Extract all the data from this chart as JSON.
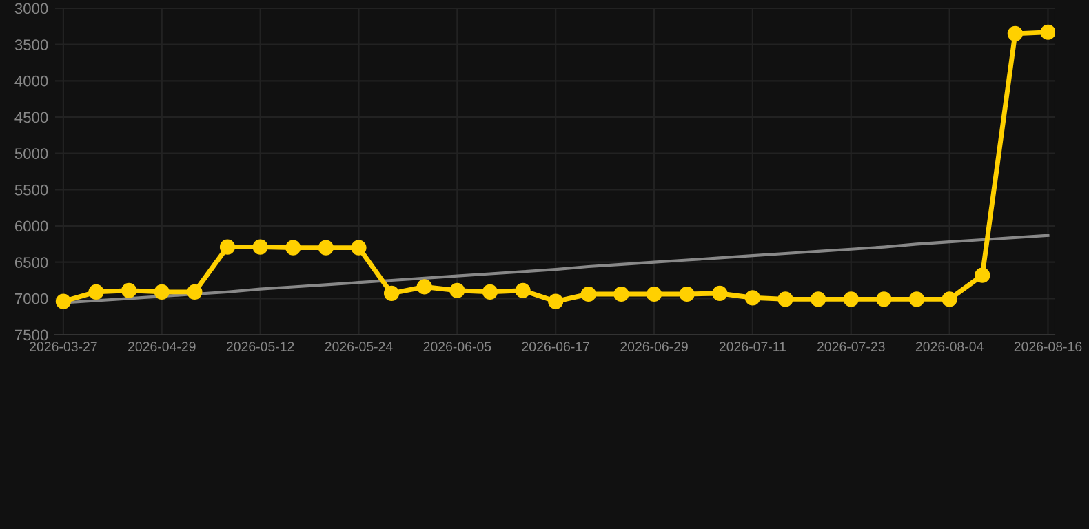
{
  "chart_data": {
    "type": "line",
    "categories": [
      "2026-03-27",
      null,
      null,
      "2026-04-29",
      null,
      null,
      "2026-05-12",
      null,
      null,
      "2026-05-24",
      null,
      null,
      "2026-06-05",
      null,
      null,
      "2026-06-17",
      null,
      null,
      "2026-06-29",
      null,
      null,
      "2026-07-11",
      null,
      null,
      "2026-07-23",
      null,
      null,
      "2026-08-04",
      null,
      null,
      "2026-08-16"
    ],
    "series": [
      {
        "color": "#ffd000",
        "marker": "circle",
        "values": [
          7040,
          6910,
          6890,
          6910,
          6910,
          6290,
          6290,
          6300,
          6300,
          6300,
          6930,
          6840,
          6890,
          6910,
          6890,
          7040,
          6940,
          6940,
          6940,
          6940,
          6930,
          6990,
          7010,
          7010,
          7010,
          7010,
          7010,
          7010,
          6680,
          3350,
          3330
        ]
      },
      {
        "color": "#888888",
        "marker": "none",
        "values": [
          7060,
          7030,
          7000,
          6970,
          6940,
          6910,
          6870,
          6840,
          6810,
          6780,
          6750,
          6720,
          6690,
          6660,
          6630,
          6600,
          6560,
          6530,
          6500,
          6470,
          6440,
          6410,
          6380,
          6350,
          6320,
          6290,
          6250,
          6220,
          6190,
          6160,
          6130
        ]
      }
    ],
    "ylim": [
      7500,
      3000
    ],
    "yticks": [
      3000,
      3500,
      4000,
      4500,
      5000,
      5500,
      6000,
      6500,
      7000,
      7500
    ],
    "grid": true,
    "legend": false
  }
}
